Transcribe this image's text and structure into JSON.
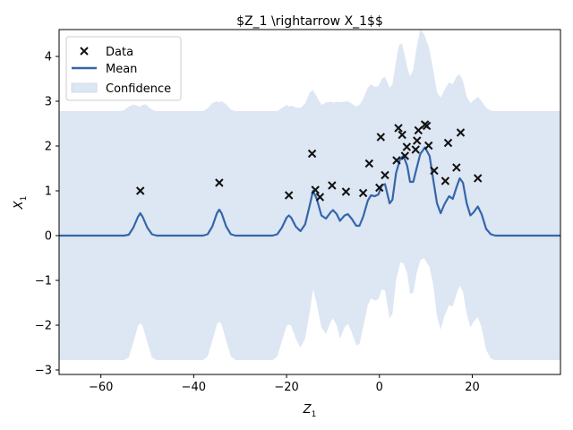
{
  "chart_data": {
    "type": "scatter",
    "title": "$Z_1 \\rightarrow X_1$$",
    "xlabel": "Z",
    "xlabel_sub": "1",
    "ylabel": "X",
    "ylabel_sub": "1",
    "xlim": [
      -69,
      39
    ],
    "ylim": [
      -3.1,
      4.6
    ],
    "xticks": [
      -60,
      -40,
      -20,
      0,
      20
    ],
    "xtick_labels": [
      "−60",
      "−40",
      "−20",
      "0",
      "20"
    ],
    "yticks": [
      -3,
      -2,
      -1,
      0,
      1,
      2,
      3,
      4
    ],
    "ytick_labels": [
      "−3",
      "−2",
      "−1",
      "0",
      "1",
      "2",
      "3",
      "4"
    ],
    "grid": false,
    "legend_position": "top-left",
    "legend": [
      {
        "label": "Data",
        "kind": "marker"
      },
      {
        "label": "Mean",
        "kind": "line"
      },
      {
        "label": "Confidence",
        "kind": "patch"
      }
    ],
    "colors": {
      "mean": "#3466a9",
      "confidence": "#dde6f3",
      "data": "#111111"
    },
    "series": [
      {
        "name": "Data",
        "type": "scatter",
        "points": [
          [
            -51.5,
            1.0
          ],
          [
            -34.5,
            1.18
          ],
          [
            -19.5,
            0.9
          ],
          [
            -14.5,
            1.83
          ],
          [
            -13.8,
            1.02
          ],
          [
            -12.8,
            0.86
          ],
          [
            -10.2,
            1.12
          ],
          [
            -7.2,
            0.98
          ],
          [
            -3.5,
            0.95
          ],
          [
            -2.2,
            1.61
          ],
          [
            0.0,
            1.07
          ],
          [
            0.3,
            2.2
          ],
          [
            1.2,
            1.35
          ],
          [
            3.7,
            1.68
          ],
          [
            4.1,
            2.4
          ],
          [
            4.9,
            2.25
          ],
          [
            5.5,
            1.78
          ],
          [
            5.9,
            1.98
          ],
          [
            7.8,
            1.92
          ],
          [
            8.1,
            2.12
          ],
          [
            8.4,
            2.35
          ],
          [
            9.8,
            2.48
          ],
          [
            10.2,
            2.45
          ],
          [
            10.6,
            2.01
          ],
          [
            11.8,
            1.45
          ],
          [
            14.2,
            1.22
          ],
          [
            14.8,
            2.07
          ],
          [
            16.6,
            1.52
          ],
          [
            17.5,
            2.3
          ],
          [
            21.2,
            1.28
          ]
        ]
      },
      {
        "name": "Mean",
        "type": "line",
        "points": [
          [
            -69,
            0.0
          ],
          [
            -55,
            0.0
          ],
          [
            -54,
            0.02
          ],
          [
            -53,
            0.18
          ],
          [
            -52,
            0.42
          ],
          [
            -51.5,
            0.5
          ],
          [
            -51,
            0.42
          ],
          [
            -50,
            0.18
          ],
          [
            -49,
            0.03
          ],
          [
            -48,
            0.0
          ],
          [
            -38,
            0.0
          ],
          [
            -37,
            0.03
          ],
          [
            -36,
            0.2
          ],
          [
            -35,
            0.5
          ],
          [
            -34.5,
            0.58
          ],
          [
            -34,
            0.5
          ],
          [
            -33,
            0.2
          ],
          [
            -32,
            0.03
          ],
          [
            -31,
            0.0
          ],
          [
            -23,
            0.0
          ],
          [
            -22,
            0.03
          ],
          [
            -21,
            0.18
          ],
          [
            -20,
            0.4
          ],
          [
            -19.5,
            0.45
          ],
          [
            -19,
            0.4
          ],
          [
            -18,
            0.2
          ],
          [
            -17,
            0.1
          ],
          [
            -16,
            0.25
          ],
          [
            -15,
            0.68
          ],
          [
            -14.3,
            1.0
          ],
          [
            -13.5,
            0.82
          ],
          [
            -12.5,
            0.45
          ],
          [
            -11.5,
            0.38
          ],
          [
            -10.5,
            0.52
          ],
          [
            -10,
            0.57
          ],
          [
            -9.2,
            0.48
          ],
          [
            -8.5,
            0.33
          ],
          [
            -7.5,
            0.45
          ],
          [
            -6.8,
            0.48
          ],
          [
            -6,
            0.38
          ],
          [
            -5,
            0.22
          ],
          [
            -4.3,
            0.22
          ],
          [
            -3.5,
            0.42
          ],
          [
            -2.5,
            0.78
          ],
          [
            -1.8,
            0.9
          ],
          [
            -1,
            0.88
          ],
          [
            -0.2,
            0.92
          ],
          [
            0.5,
            1.12
          ],
          [
            1.2,
            1.15
          ],
          [
            2.2,
            0.72
          ],
          [
            2.8,
            0.8
          ],
          [
            3.6,
            1.4
          ],
          [
            4.5,
            1.72
          ],
          [
            5.2,
            1.78
          ],
          [
            6,
            1.55
          ],
          [
            6.6,
            1.2
          ],
          [
            7.3,
            1.2
          ],
          [
            8,
            1.5
          ],
          [
            8.8,
            1.82
          ],
          [
            9.8,
            1.97
          ],
          [
            10.8,
            1.78
          ],
          [
            11.6,
            1.25
          ],
          [
            12.4,
            0.72
          ],
          [
            13.2,
            0.5
          ],
          [
            14,
            0.7
          ],
          [
            15,
            0.88
          ],
          [
            15.8,
            0.82
          ],
          [
            16.6,
            1.08
          ],
          [
            17.3,
            1.28
          ],
          [
            18,
            1.18
          ],
          [
            18.8,
            0.72
          ],
          [
            19.6,
            0.45
          ],
          [
            20.3,
            0.52
          ],
          [
            21.2,
            0.65
          ],
          [
            22,
            0.48
          ],
          [
            23,
            0.15
          ],
          [
            24,
            0.03
          ],
          [
            25,
            0.0
          ],
          [
            39,
            0.0
          ]
        ]
      },
      {
        "name": "Confidence",
        "type": "band",
        "upper": [
          [
            -69,
            2.78
          ],
          [
            -56,
            2.78
          ],
          [
            -55,
            2.8
          ],
          [
            -54,
            2.88
          ],
          [
            -53,
            2.93
          ],
          [
            -52.2,
            2.9
          ],
          [
            -51.5,
            2.88
          ],
          [
            -51,
            2.92
          ],
          [
            -50.2,
            2.93
          ],
          [
            -49.5,
            2.85
          ],
          [
            -48.5,
            2.79
          ],
          [
            -48,
            2.78
          ],
          [
            -38,
            2.78
          ],
          [
            -37,
            2.84
          ],
          [
            -36,
            2.96
          ],
          [
            -35,
            3.0
          ],
          [
            -34.5,
            2.97
          ],
          [
            -34,
            3.0
          ],
          [
            -33,
            2.93
          ],
          [
            -32,
            2.81
          ],
          [
            -31,
            2.78
          ],
          [
            -22,
            2.78
          ],
          [
            -21,
            2.85
          ],
          [
            -20,
            2.92
          ],
          [
            -19.5,
            2.88
          ],
          [
            -19,
            2.9
          ],
          [
            -18,
            2.86
          ],
          [
            -17,
            2.85
          ],
          [
            -16,
            2.95
          ],
          [
            -15,
            3.2
          ],
          [
            -14.3,
            3.25
          ],
          [
            -13.5,
            3.1
          ],
          [
            -12.5,
            2.92
          ],
          [
            -11.5,
            2.97
          ],
          [
            -10.5,
            2.99
          ],
          [
            -10,
            2.97
          ],
          [
            -9.2,
            2.99
          ],
          [
            -8.5,
            2.98
          ],
          [
            -7.5,
            2.99
          ],
          [
            -6.8,
            3.0
          ],
          [
            -6,
            2.95
          ],
          [
            -5,
            2.88
          ],
          [
            -4.3,
            2.92
          ],
          [
            -3.5,
            3.05
          ],
          [
            -2.5,
            3.3
          ],
          [
            -1.8,
            3.38
          ],
          [
            -1,
            3.32
          ],
          [
            -0.2,
            3.34
          ],
          [
            0.5,
            3.5
          ],
          [
            1.2,
            3.55
          ],
          [
            2.2,
            3.3
          ],
          [
            2.8,
            3.38
          ],
          [
            3.6,
            3.9
          ],
          [
            4.2,
            4.25
          ],
          [
            4.8,
            4.3
          ],
          [
            5.3,
            4.1
          ],
          [
            6,
            3.75
          ],
          [
            6.6,
            3.55
          ],
          [
            7.3,
            3.7
          ],
          [
            8,
            4.2
          ],
          [
            8.8,
            4.6
          ],
          [
            9.6,
            4.5
          ],
          [
            10.8,
            4.15
          ],
          [
            11.6,
            3.7
          ],
          [
            12.4,
            3.2
          ],
          [
            13.2,
            3.08
          ],
          [
            14,
            3.25
          ],
          [
            15,
            3.42
          ],
          [
            15.8,
            3.38
          ],
          [
            16.6,
            3.55
          ],
          [
            17.3,
            3.6
          ],
          [
            18,
            3.45
          ],
          [
            18.8,
            3.1
          ],
          [
            19.6,
            2.96
          ],
          [
            20.3,
            3.02
          ],
          [
            21.2,
            3.1
          ],
          [
            22,
            3.0
          ],
          [
            23,
            2.85
          ],
          [
            24,
            2.79
          ],
          [
            25,
            2.78
          ],
          [
            39,
            2.78
          ]
        ],
        "lower": [
          [
            -69,
            -2.78
          ],
          [
            -55,
            -2.78
          ],
          [
            -54,
            -2.72
          ],
          [
            -53,
            -2.38
          ],
          [
            -52,
            -2.02
          ],
          [
            -51.5,
            -1.95
          ],
          [
            -51,
            -2.02
          ],
          [
            -50,
            -2.38
          ],
          [
            -49,
            -2.72
          ],
          [
            -48,
            -2.78
          ],
          [
            -38,
            -2.78
          ],
          [
            -37,
            -2.7
          ],
          [
            -36,
            -2.35
          ],
          [
            -35,
            -1.98
          ],
          [
            -34.5,
            -1.92
          ],
          [
            -34,
            -1.98
          ],
          [
            -33,
            -2.35
          ],
          [
            -32,
            -2.7
          ],
          [
            -31,
            -2.78
          ],
          [
            -23,
            -2.78
          ],
          [
            -22,
            -2.7
          ],
          [
            -21,
            -2.35
          ],
          [
            -20,
            -2.02
          ],
          [
            -19.5,
            -1.98
          ],
          [
            -19,
            -2.02
          ],
          [
            -18,
            -2.3
          ],
          [
            -17,
            -2.5
          ],
          [
            -16,
            -2.3
          ],
          [
            -15,
            -1.7
          ],
          [
            -14.3,
            -1.2
          ],
          [
            -13.5,
            -1.52
          ],
          [
            -12.5,
            -2.05
          ],
          [
            -11.5,
            -2.2
          ],
          [
            -10.5,
            -1.92
          ],
          [
            -10,
            -1.85
          ],
          [
            -9.2,
            -2.0
          ],
          [
            -8.5,
            -2.3
          ],
          [
            -7.5,
            -2.05
          ],
          [
            -6.8,
            -1.97
          ],
          [
            -6,
            -2.15
          ],
          [
            -5,
            -2.45
          ],
          [
            -4.3,
            -2.42
          ],
          [
            -3.5,
            -2.05
          ],
          [
            -2.5,
            -1.55
          ],
          [
            -1.8,
            -1.4
          ],
          [
            -1,
            -1.45
          ],
          [
            -0.2,
            -1.42
          ],
          [
            0.5,
            -1.2
          ],
          [
            1.2,
            -1.22
          ],
          [
            2.2,
            -1.85
          ],
          [
            2.8,
            -1.75
          ],
          [
            3.6,
            -1.0
          ],
          [
            4.5,
            -0.6
          ],
          [
            5.2,
            -0.62
          ],
          [
            6,
            -0.85
          ],
          [
            6.6,
            -1.3
          ],
          [
            7.3,
            -1.28
          ],
          [
            8,
            -0.85
          ],
          [
            8.8,
            -0.55
          ],
          [
            9.6,
            -0.5
          ],
          [
            10.8,
            -0.7
          ],
          [
            11.6,
            -1.1
          ],
          [
            12.4,
            -1.8
          ],
          [
            13.2,
            -2.1
          ],
          [
            14,
            -1.8
          ],
          [
            15,
            -1.55
          ],
          [
            15.8,
            -1.58
          ],
          [
            16.6,
            -1.3
          ],
          [
            17.3,
            -1.12
          ],
          [
            18,
            -1.25
          ],
          [
            18.8,
            -1.75
          ],
          [
            19.6,
            -2.05
          ],
          [
            20.3,
            -1.92
          ],
          [
            21.2,
            -1.82
          ],
          [
            22,
            -2.05
          ],
          [
            23,
            -2.55
          ],
          [
            24,
            -2.75
          ],
          [
            25,
            -2.78
          ],
          [
            39,
            -2.78
          ]
        ]
      }
    ]
  }
}
